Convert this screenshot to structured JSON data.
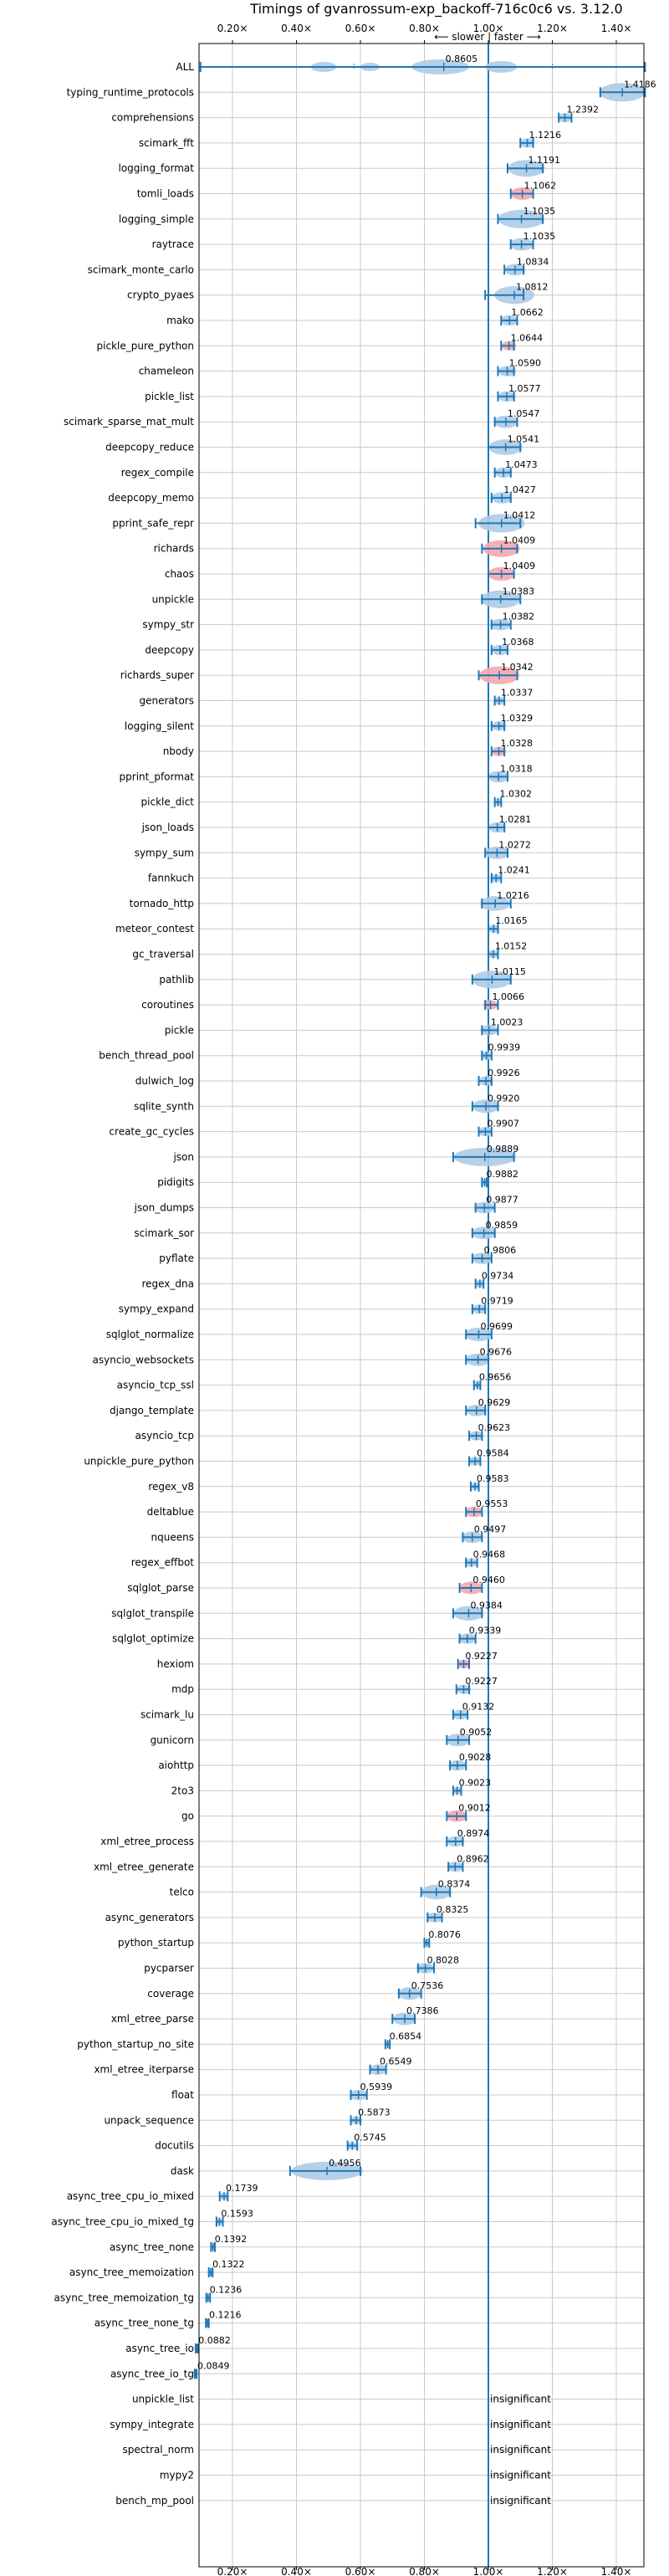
{
  "chart_data": {
    "type": "violin",
    "title": "Timings of gvanrossum-exp_backoff-716c0c6 vs. 3.12.0",
    "direction_label": "⟵ slower | faster ⟶",
    "xlim": [
      0.05,
      1.5
    ],
    "xticks": [
      "0.20×",
      "0.40×",
      "0.60×",
      "0.80×",
      "1.00×",
      "1.20×",
      "1.40×"
    ],
    "xtick_values": [
      0.2,
      0.4,
      0.6,
      0.8,
      1.0,
      1.2,
      1.4
    ],
    "reference_line": 1.0,
    "colors": {
      "violin": "#aecbe6",
      "significant_slow": "#f4a7ad",
      "bar": "#1f77b4",
      "line": "#1f77b4",
      "grid": "#c9c9c9"
    },
    "benchmarks": [
      {
        "name": "ALL",
        "value": "0.8605",
        "mean": 0.8605,
        "min": 0.1,
        "max": 1.49,
        "color": "blue"
      },
      {
        "name": "typing_runtime_protocols",
        "value": "1.4186",
        "mean": 1.4186,
        "min": 1.35,
        "max": 1.49,
        "color": "blue"
      },
      {
        "name": "comprehensions",
        "value": "1.2392",
        "mean": 1.2392,
        "min": 1.22,
        "max": 1.26,
        "color": "blue"
      },
      {
        "name": "scimark_fft",
        "value": "1.1216",
        "mean": 1.1216,
        "min": 1.1,
        "max": 1.14,
        "color": "blue"
      },
      {
        "name": "logging_format",
        "value": "1.1191",
        "mean": 1.1191,
        "min": 1.06,
        "max": 1.17,
        "color": "blue"
      },
      {
        "name": "tomli_loads",
        "value": "1.1062",
        "mean": 1.1062,
        "min": 1.07,
        "max": 1.14,
        "color": "red"
      },
      {
        "name": "logging_simple",
        "value": "1.1035",
        "mean": 1.1035,
        "min": 1.03,
        "max": 1.17,
        "color": "blue"
      },
      {
        "name": "raytrace",
        "value": "1.1035",
        "mean": 1.1035,
        "min": 1.07,
        "max": 1.14,
        "color": "blue"
      },
      {
        "name": "scimark_monte_carlo",
        "value": "1.0834",
        "mean": 1.0834,
        "min": 1.05,
        "max": 1.11,
        "color": "blue"
      },
      {
        "name": "crypto_pyaes",
        "value": "1.0812",
        "mean": 1.0812,
        "min": 0.99,
        "max": 1.11,
        "color": "blue"
      },
      {
        "name": "mako",
        "value": "1.0662",
        "mean": 1.0662,
        "min": 1.04,
        "max": 1.09,
        "color": "blue"
      },
      {
        "name": "pickle_pure_python",
        "value": "1.0644",
        "mean": 1.0644,
        "min": 1.04,
        "max": 1.08,
        "color": "red"
      },
      {
        "name": "chameleon",
        "value": "1.0590",
        "mean": 1.059,
        "min": 1.03,
        "max": 1.08,
        "color": "blue"
      },
      {
        "name": "pickle_list",
        "value": "1.0577",
        "mean": 1.0577,
        "min": 1.03,
        "max": 1.08,
        "color": "blue"
      },
      {
        "name": "scimark_sparse_mat_mult",
        "value": "1.0547",
        "mean": 1.0547,
        "min": 1.02,
        "max": 1.09,
        "color": "blue"
      },
      {
        "name": "deepcopy_reduce",
        "value": "1.0541",
        "mean": 1.0541,
        "min": 1.0,
        "max": 1.1,
        "color": "blue"
      },
      {
        "name": "regex_compile",
        "value": "1.0473",
        "mean": 1.0473,
        "min": 1.02,
        "max": 1.07,
        "color": "blue"
      },
      {
        "name": "deepcopy_memo",
        "value": "1.0427",
        "mean": 1.0427,
        "min": 1.01,
        "max": 1.07,
        "color": "blue"
      },
      {
        "name": "pprint_safe_repr",
        "value": "1.0412",
        "mean": 1.0412,
        "min": 0.96,
        "max": 1.1,
        "color": "blue"
      },
      {
        "name": "richards",
        "value": "1.0409",
        "mean": 1.0409,
        "min": 0.98,
        "max": 1.09,
        "color": "red"
      },
      {
        "name": "chaos",
        "value": "1.0409",
        "mean": 1.0409,
        "min": 1.0,
        "max": 1.08,
        "color": "red"
      },
      {
        "name": "unpickle",
        "value": "1.0383",
        "mean": 1.0383,
        "min": 0.98,
        "max": 1.1,
        "color": "blue"
      },
      {
        "name": "sympy_str",
        "value": "1.0382",
        "mean": 1.0382,
        "min": 1.01,
        "max": 1.07,
        "color": "blue"
      },
      {
        "name": "deepcopy",
        "value": "1.0368",
        "mean": 1.0368,
        "min": 1.01,
        "max": 1.06,
        "color": "blue"
      },
      {
        "name": "richards_super",
        "value": "1.0342",
        "mean": 1.0342,
        "min": 0.97,
        "max": 1.09,
        "color": "red"
      },
      {
        "name": "generators",
        "value": "1.0337",
        "mean": 1.0337,
        "min": 1.02,
        "max": 1.05,
        "color": "blue"
      },
      {
        "name": "logging_silent",
        "value": "1.0329",
        "mean": 1.0329,
        "min": 1.01,
        "max": 1.05,
        "color": "blue"
      },
      {
        "name": "nbody",
        "value": "1.0328",
        "mean": 1.0328,
        "min": 1.01,
        "max": 1.05,
        "color": "red"
      },
      {
        "name": "pprint_pformat",
        "value": "1.0318",
        "mean": 1.0318,
        "min": 1.0,
        "max": 1.06,
        "color": "blue"
      },
      {
        "name": "pickle_dict",
        "value": "1.0302",
        "mean": 1.0302,
        "min": 1.02,
        "max": 1.04,
        "color": "blue"
      },
      {
        "name": "json_loads",
        "value": "1.0281",
        "mean": 1.0281,
        "min": 1.0,
        "max": 1.05,
        "color": "blue"
      },
      {
        "name": "sympy_sum",
        "value": "1.0272",
        "mean": 1.0272,
        "min": 0.99,
        "max": 1.06,
        "color": "blue"
      },
      {
        "name": "fannkuch",
        "value": "1.0241",
        "mean": 1.0241,
        "min": 1.01,
        "max": 1.04,
        "color": "blue"
      },
      {
        "name": "tornado_http",
        "value": "1.0216",
        "mean": 1.0216,
        "min": 0.98,
        "max": 1.07,
        "color": "blue"
      },
      {
        "name": "meteor_contest",
        "value": "1.0165",
        "mean": 1.0165,
        "min": 1.0,
        "max": 1.03,
        "color": "blue"
      },
      {
        "name": "gc_traversal",
        "value": "1.0152",
        "mean": 1.0152,
        "min": 1.0,
        "max": 1.03,
        "color": "blue"
      },
      {
        "name": "pathlib",
        "value": "1.0115",
        "mean": 1.0115,
        "min": 0.95,
        "max": 1.07,
        "color": "blue"
      },
      {
        "name": "coroutines",
        "value": "1.0066",
        "mean": 1.0066,
        "min": 0.99,
        "max": 1.03,
        "color": "red"
      },
      {
        "name": "pickle",
        "value": "1.0023",
        "mean": 1.0023,
        "min": 0.98,
        "max": 1.03,
        "color": "blue"
      },
      {
        "name": "bench_thread_pool",
        "value": "0.9939",
        "mean": 0.9939,
        "min": 0.98,
        "max": 1.01,
        "color": "blue"
      },
      {
        "name": "dulwich_log",
        "value": "0.9926",
        "mean": 0.9926,
        "min": 0.97,
        "max": 1.01,
        "color": "blue"
      },
      {
        "name": "sqlite_synth",
        "value": "0.9920",
        "mean": 0.992,
        "min": 0.95,
        "max": 1.03,
        "color": "blue"
      },
      {
        "name": "create_gc_cycles",
        "value": "0.9907",
        "mean": 0.9907,
        "min": 0.97,
        "max": 1.01,
        "color": "blue"
      },
      {
        "name": "json",
        "value": "0.9889",
        "mean": 0.9889,
        "min": 0.89,
        "max": 1.08,
        "color": "blue"
      },
      {
        "name": "pidigits",
        "value": "0.9882",
        "mean": 0.9882,
        "min": 0.98,
        "max": 0.995,
        "color": "blue"
      },
      {
        "name": "json_dumps",
        "value": "0.9877",
        "mean": 0.9877,
        "min": 0.96,
        "max": 1.02,
        "color": "blue"
      },
      {
        "name": "scimark_sor",
        "value": "0.9859",
        "mean": 0.9859,
        "min": 0.95,
        "max": 1.02,
        "color": "blue"
      },
      {
        "name": "pyflate",
        "value": "0.9806",
        "mean": 0.9806,
        "min": 0.95,
        "max": 1.01,
        "color": "blue"
      },
      {
        "name": "regex_dna",
        "value": "0.9734",
        "mean": 0.9734,
        "min": 0.96,
        "max": 0.985,
        "color": "blue"
      },
      {
        "name": "sympy_expand",
        "value": "0.9719",
        "mean": 0.9719,
        "min": 0.95,
        "max": 0.99,
        "color": "blue"
      },
      {
        "name": "sqlglot_normalize",
        "value": "0.9699",
        "mean": 0.9699,
        "min": 0.93,
        "max": 1.01,
        "color": "blue"
      },
      {
        "name": "asyncio_websockets",
        "value": "0.9676",
        "mean": 0.9676,
        "min": 0.93,
        "max": 1.0,
        "color": "blue"
      },
      {
        "name": "asyncio_tcp_ssl",
        "value": "0.9656",
        "mean": 0.9656,
        "min": 0.955,
        "max": 0.975,
        "color": "blue"
      },
      {
        "name": "django_template",
        "value": "0.9629",
        "mean": 0.9629,
        "min": 0.93,
        "max": 0.99,
        "color": "blue"
      },
      {
        "name": "asyncio_tcp",
        "value": "0.9623",
        "mean": 0.9623,
        "min": 0.94,
        "max": 0.98,
        "color": "blue"
      },
      {
        "name": "unpickle_pure_python",
        "value": "0.9584",
        "mean": 0.9584,
        "min": 0.94,
        "max": 0.975,
        "color": "blue"
      },
      {
        "name": "regex_v8",
        "value": "0.9583",
        "mean": 0.9583,
        "min": 0.945,
        "max": 0.97,
        "color": "blue"
      },
      {
        "name": "deltablue",
        "value": "0.9553",
        "mean": 0.9553,
        "min": 0.93,
        "max": 0.98,
        "color": "red"
      },
      {
        "name": "nqueens",
        "value": "0.9497",
        "mean": 0.9497,
        "min": 0.92,
        "max": 0.98,
        "color": "blue"
      },
      {
        "name": "regex_effbot",
        "value": "0.9468",
        "mean": 0.9468,
        "min": 0.93,
        "max": 0.965,
        "color": "blue"
      },
      {
        "name": "sqlglot_parse",
        "value": "0.9460",
        "mean": 0.946,
        "min": 0.91,
        "max": 0.98,
        "color": "red"
      },
      {
        "name": "sqlglot_transpile",
        "value": "0.9384",
        "mean": 0.9384,
        "min": 0.89,
        "max": 0.98,
        "color": "blue"
      },
      {
        "name": "sqlglot_optimize",
        "value": "0.9339",
        "mean": 0.9339,
        "min": 0.91,
        "max": 0.96,
        "color": "blue"
      },
      {
        "name": "hexiom",
        "value": "0.9227",
        "mean": 0.9227,
        "min": 0.905,
        "max": 0.94,
        "color": "red"
      },
      {
        "name": "mdp",
        "value": "0.9227",
        "mean": 0.9227,
        "min": 0.9,
        "max": 0.94,
        "color": "blue"
      },
      {
        "name": "scimark_lu",
        "value": "0.9132",
        "mean": 0.9132,
        "min": 0.89,
        "max": 0.935,
        "color": "blue"
      },
      {
        "name": "gunicorn",
        "value": "0.9052",
        "mean": 0.9052,
        "min": 0.87,
        "max": 0.94,
        "color": "blue"
      },
      {
        "name": "aiohttp",
        "value": "0.9028",
        "mean": 0.9028,
        "min": 0.88,
        "max": 0.93,
        "color": "blue"
      },
      {
        "name": "2to3",
        "value": "0.9023",
        "mean": 0.9023,
        "min": 0.89,
        "max": 0.915,
        "color": "blue"
      },
      {
        "name": "go",
        "value": "0.9012",
        "mean": 0.9012,
        "min": 0.87,
        "max": 0.93,
        "color": "red"
      },
      {
        "name": "xml_etree_process",
        "value": "0.8974",
        "mean": 0.8974,
        "min": 0.87,
        "max": 0.92,
        "color": "blue"
      },
      {
        "name": "xml_etree_generate",
        "value": "0.8962",
        "mean": 0.8962,
        "min": 0.875,
        "max": 0.92,
        "color": "blue"
      },
      {
        "name": "telco",
        "value": "0.8374",
        "mean": 0.8374,
        "min": 0.79,
        "max": 0.88,
        "color": "blue"
      },
      {
        "name": "async_generators",
        "value": "0.8325",
        "mean": 0.8325,
        "min": 0.81,
        "max": 0.855,
        "color": "blue"
      },
      {
        "name": "python_startup",
        "value": "0.8076",
        "mean": 0.8076,
        "min": 0.8,
        "max": 0.815,
        "color": "blue"
      },
      {
        "name": "pycparser",
        "value": "0.8028",
        "mean": 0.8028,
        "min": 0.78,
        "max": 0.83,
        "color": "blue"
      },
      {
        "name": "coverage",
        "value": "0.7536",
        "mean": 0.7536,
        "min": 0.72,
        "max": 0.79,
        "color": "blue"
      },
      {
        "name": "xml_etree_parse",
        "value": "0.7386",
        "mean": 0.7386,
        "min": 0.7,
        "max": 0.77,
        "color": "blue"
      },
      {
        "name": "python_startup_no_site",
        "value": "0.6854",
        "mean": 0.6854,
        "min": 0.678,
        "max": 0.692,
        "color": "blue"
      },
      {
        "name": "xml_etree_iterparse",
        "value": "0.6549",
        "mean": 0.6549,
        "min": 0.63,
        "max": 0.68,
        "color": "blue"
      },
      {
        "name": "float",
        "value": "0.5939",
        "mean": 0.5939,
        "min": 0.57,
        "max": 0.62,
        "color": "blue"
      },
      {
        "name": "unpack_sequence",
        "value": "0.5873",
        "mean": 0.5873,
        "min": 0.57,
        "max": 0.6,
        "color": "blue"
      },
      {
        "name": "docutils",
        "value": "0.5745",
        "mean": 0.5745,
        "min": 0.56,
        "max": 0.59,
        "color": "blue"
      },
      {
        "name": "dask",
        "value": "0.4956",
        "mean": 0.4956,
        "min": 0.38,
        "max": 0.6,
        "color": "blue"
      },
      {
        "name": "async_tree_cpu_io_mixed",
        "value": "0.1739",
        "mean": 0.1739,
        "min": 0.16,
        "max": 0.185,
        "color": "blue"
      },
      {
        "name": "async_tree_cpu_io_mixed_tg",
        "value": "0.1593",
        "mean": 0.1593,
        "min": 0.15,
        "max": 0.17,
        "color": "blue"
      },
      {
        "name": "async_tree_none",
        "value": "0.1392",
        "mean": 0.1392,
        "min": 0.133,
        "max": 0.145,
        "color": "blue"
      },
      {
        "name": "async_tree_memoization",
        "value": "0.1322",
        "mean": 0.1322,
        "min": 0.126,
        "max": 0.138,
        "color": "blue"
      },
      {
        "name": "async_tree_memoization_tg",
        "value": "0.1236",
        "mean": 0.1236,
        "min": 0.118,
        "max": 0.13,
        "color": "blue"
      },
      {
        "name": "async_tree_none_tg",
        "value": "0.1216",
        "mean": 0.1216,
        "min": 0.117,
        "max": 0.126,
        "color": "blue"
      },
      {
        "name": "async_tree_io",
        "value": "0.0882",
        "mean": 0.0882,
        "min": 0.085,
        "max": 0.092,
        "color": "blue"
      },
      {
        "name": "async_tree_io_tg",
        "value": "0.0849",
        "mean": 0.0849,
        "min": 0.082,
        "max": 0.088,
        "color": "blue"
      },
      {
        "name": "unpickle_list",
        "value": "insignificant",
        "mean": null,
        "color": "none"
      },
      {
        "name": "sympy_integrate",
        "value": "insignificant",
        "mean": null,
        "color": "none"
      },
      {
        "name": "spectral_norm",
        "value": "insignificant",
        "mean": null,
        "color": "none"
      },
      {
        "name": "mypy2",
        "value": "insignificant",
        "mean": null,
        "color": "none"
      },
      {
        "name": "bench_mp_pool",
        "value": "insignificant",
        "mean": null,
        "color": "none"
      }
    ]
  }
}
